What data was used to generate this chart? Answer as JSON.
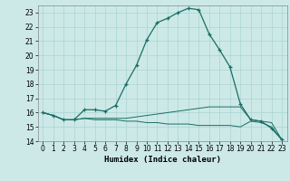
{
  "xlabel": "Humidex (Indice chaleur)",
  "background_color": "#cce9e8",
  "grid_color": "#aad4d2",
  "line_color": "#1a6e65",
  "xlim": [
    -0.5,
    23.5
  ],
  "ylim": [
    14,
    23.5
  ],
  "yticks": [
    14,
    15,
    16,
    17,
    18,
    19,
    20,
    21,
    22,
    23
  ],
  "xticks": [
    0,
    1,
    2,
    3,
    4,
    5,
    6,
    7,
    8,
    9,
    10,
    11,
    12,
    13,
    14,
    15,
    16,
    17,
    18,
    19,
    20,
    21,
    22,
    23
  ],
  "line1_x": [
    0,
    1,
    2,
    3,
    4,
    5,
    6,
    7,
    8,
    9,
    10,
    11,
    12,
    13,
    14,
    15,
    16,
    17,
    18,
    19,
    20,
    21,
    22,
    23
  ],
  "line1_y": [
    16.0,
    15.8,
    15.5,
    15.5,
    16.2,
    16.2,
    16.1,
    16.5,
    18.0,
    19.3,
    21.1,
    22.3,
    22.6,
    23.0,
    23.3,
    23.2,
    21.5,
    20.4,
    19.2,
    16.6,
    15.5,
    15.4,
    14.9,
    14.1
  ],
  "line2_x": [
    0,
    1,
    2,
    3,
    4,
    5,
    6,
    7,
    8,
    9,
    10,
    11,
    12,
    13,
    14,
    15,
    16,
    17,
    18,
    19,
    20,
    21,
    22,
    23
  ],
  "line2_y": [
    16.0,
    15.8,
    15.5,
    15.5,
    15.6,
    15.6,
    15.6,
    15.6,
    15.6,
    15.7,
    15.8,
    15.9,
    16.0,
    16.1,
    16.2,
    16.3,
    16.4,
    16.4,
    16.4,
    16.4,
    15.5,
    15.4,
    15.3,
    14.1
  ],
  "line3_x": [
    0,
    1,
    2,
    3,
    4,
    5,
    6,
    7,
    8,
    9,
    10,
    11,
    12,
    13,
    14,
    15,
    16,
    17,
    18,
    19,
    20,
    21,
    22,
    23
  ],
  "line3_y": [
    16.0,
    15.8,
    15.5,
    15.5,
    15.6,
    15.5,
    15.5,
    15.5,
    15.4,
    15.4,
    15.3,
    15.3,
    15.2,
    15.2,
    15.2,
    15.1,
    15.1,
    15.1,
    15.1,
    15.0,
    15.4,
    15.3,
    15.0,
    14.1
  ]
}
